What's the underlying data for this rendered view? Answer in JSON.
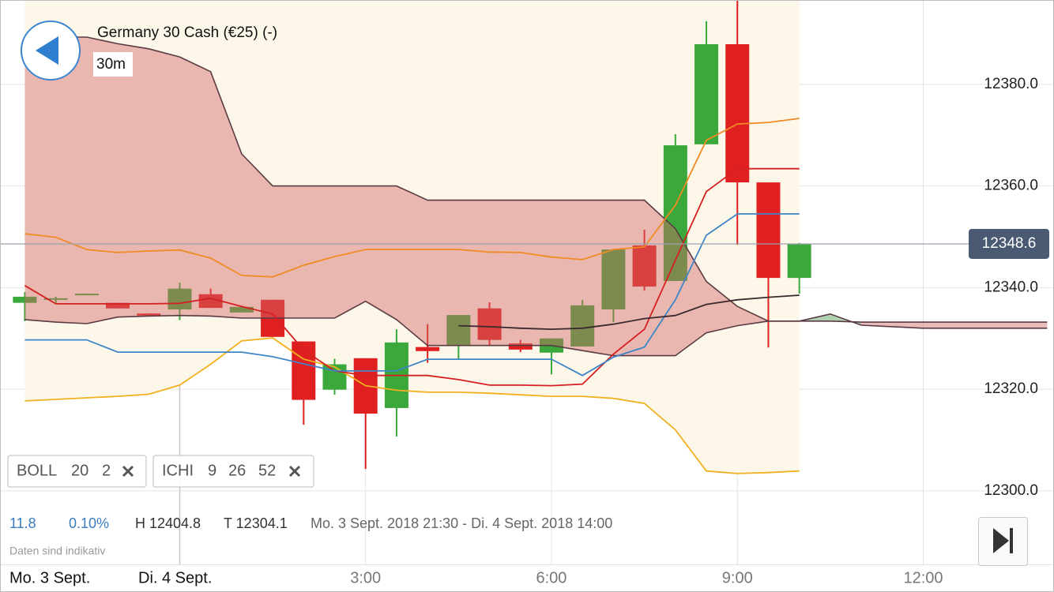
{
  "header": {
    "title": "Germany 30 Cash (€25) (-)",
    "timeframe": "30m"
  },
  "indicators": [
    {
      "name": "BOLL",
      "params": [
        20,
        2
      ]
    },
    {
      "name": "ICHI",
      "params": [
        9,
        26,
        52
      ]
    }
  ],
  "stats": {
    "change": 11.8,
    "change_pct": "0.10%",
    "high": "H 12404.8",
    "low": "T 12304.1",
    "range": "Mo. 3 Sept. 2018 21:30 - Di. 4 Sept. 2018 14:00"
  },
  "footer_note": "Daten sind indikativ",
  "dates": [
    "Mo. 3 Sept.",
    "Di. 4 Sept."
  ],
  "chart_data": {
    "type": "candlestick",
    "x": [
      -2.5,
      -2,
      -1.5,
      -1,
      -0.5,
      0,
      0.5,
      1,
      1.5,
      2,
      2.5,
      3,
      3.5,
      4,
      4.5,
      5,
      5.5,
      6,
      6.5,
      7,
      7.5,
      8,
      8.5,
      9,
      9.5,
      10,
      10.5,
      11,
      11.5,
      12,
      12.5,
      13,
      13.5,
      14
    ],
    "open": [
      12337.0,
      12337.8,
      12338.8,
      12337.0,
      12334.9,
      12335.7,
      12338.7,
      12335.1,
      12337.6,
      12329.4,
      12319.9,
      12326.1,
      12316.3,
      12328.3,
      12328.7,
      12335.9,
      12329.0,
      12327.2,
      12328.4,
      12335.7,
      12348.3,
      12341.3,
      12368.2,
      12387.9,
      12360.7,
      12341.9,
      null,
      null,
      null,
      null,
      null,
      null,
      null,
      null
    ],
    "high": [
      12339.1,
      12338.2,
      12338.8,
      12337.0,
      12334.9,
      12341.0,
      12339.8,
      12336.2,
      12337.6,
      12329.4,
      12326.0,
      12326.1,
      12331.8,
      12332.8,
      12334.6,
      12337.1,
      12329.7,
      12330.0,
      12337.6,
      12347.5,
      12351.4,
      12370.2,
      12392.4,
      12396.6,
      12360.7,
      12348.8,
      null,
      null,
      null,
      null,
      null,
      null,
      null,
      null
    ],
    "low": [
      12333.4,
      12336.9,
      12338.8,
      12335.9,
      12334.5,
      12333.6,
      12336.0,
      12335.1,
      12330.3,
      12313.0,
      12318.9,
      12304.3,
      12310.7,
      12325.2,
      12326.0,
      12328.7,
      12327.3,
      12322.9,
      12328.4,
      12333.2,
      12339.4,
      12341.3,
      12368.2,
      12348.4,
      12328.2,
      12338.8,
      null,
      null,
      null,
      null,
      null,
      null,
      null,
      null
    ],
    "close": [
      12338.2,
      12337.9,
      12338.8,
      12335.9,
      12334.5,
      12339.8,
      12336.0,
      12336.2,
      12330.3,
      12317.9,
      12324.9,
      12315.2,
      12329.2,
      12327.5,
      12334.6,
      12329.7,
      12327.8,
      12330.0,
      12336.5,
      12347.5,
      12340.2,
      12368.0,
      12387.9,
      12360.7,
      12341.9,
      12348.6,
      null,
      null,
      null,
      null,
      null,
      null,
      null,
      null
    ],
    "up_color": "#3aa83a",
    "down_color": "#e02020",
    "series": [
      {
        "color": "#f08a24",
        "values": [
          12350.6,
          12349.9,
          12347.5,
          12346.9,
          12347.2,
          12347.4,
          12345.8,
          12342.4,
          12342.1,
          12344.4,
          12346.1,
          12347.5,
          12347.5,
          12347.5,
          12347.5,
          12347.0,
          12346.9,
          12346.0,
          12345.5,
          12347.5,
          12348.0,
          12356.2,
          12369.0,
          12372.2,
          12372.5,
          12373.3,
          null,
          null,
          null,
          null,
          null,
          null,
          null,
          null
        ]
      },
      {
        "color": "#f0b020",
        "fill_above": "#fdf7ea",
        "values": [
          12317.7,
          12318.0,
          12318.3,
          12318.6,
          12319.0,
          12320.8,
          12324.9,
          12329.5,
          12330.1,
          12325.9,
          12324.4,
          12320.7,
          12319.8,
          12319.4,
          12319.4,
          12319.2,
          12318.9,
          12318.6,
          12318.6,
          12318.2,
          12317.2,
          12312.0,
          12303.9,
          12303.4,
          12303.6,
          12303.9,
          null,
          null,
          null,
          null,
          null,
          null,
          null,
          null
        ]
      },
      {
        "color": "#d42020",
        "values": [
          12340.4,
          12336.8,
          12336.8,
          12336.8,
          12336.8,
          12336.9,
          12337.9,
          12336.3,
          12334.8,
          12327.7,
          12323.6,
          12322.7,
          12322.7,
          12322.7,
          12321.9,
          12320.8,
          12320.8,
          12320.7,
          12321.0,
          12326.9,
          12331.8,
          12345.4,
          12358.9,
          12363.4,
          12363.4,
          12363.4,
          null,
          null,
          null,
          null,
          null,
          null,
          null,
          null
        ]
      },
      {
        "color": "#3d85c6",
        "values": [
          12329.7,
          12329.7,
          12329.7,
          12327.3,
          12327.3,
          12327.3,
          12327.3,
          12327.3,
          12326.4,
          12325.0,
          12323.6,
          12323.6,
          12323.6,
          12325.9,
          12325.9,
          12325.9,
          12325.9,
          12325.9,
          12322.7,
          12326.3,
          12328.3,
          12337.6,
          12350.3,
          12354.5,
          12354.5,
          12354.5,
          null,
          null,
          null,
          null,
          null,
          null,
          null,
          null
        ]
      },
      {
        "color": "#3a2a2e",
        "values": [
          null,
          null,
          null,
          null,
          null,
          null,
          null,
          null,
          null,
          null,
          null,
          null,
          null,
          null,
          12332.5,
          12332.3,
          12332.0,
          12331.8,
          12332.0,
          12332.8,
          12333.9,
          12334.5,
          12336.7,
          12337.6,
          12338.1,
          12338.5,
          null,
          null,
          null,
          null,
          null,
          null,
          null,
          null
        ]
      }
    ],
    "cloud": {
      "line_color": "#5a3a42",
      "up_color": "#4e9a4e",
      "down_color": "#d06868",
      "span_a": [
        12333.7,
        12333.2,
        12332.9,
        12334.2,
        12334.4,
        12334.5,
        12334.4,
        12334.0,
        12334.0,
        12334.0,
        12334.0,
        12337.3,
        12333.7,
        12328.6,
        12328.6,
        12328.6,
        12328.6,
        12328.6,
        12327.6,
        12326.6,
        12326.6,
        12326.6,
        12331.1,
        12332.5,
        12333.4,
        12333.4,
        12334.8,
        12332.6,
        12332.3,
        12332.0,
        12332.0,
        12332.0,
        12332.0,
        12332.0
      ],
      "span_b": [
        12389.3,
        12389.3,
        12389.3,
        12388.0,
        12387.0,
        12385.4,
        12382.5,
        12366.3,
        12360.0,
        12360.0,
        12360.0,
        12360.0,
        12360.0,
        12357.2,
        12357.2,
        12357.2,
        12357.2,
        12357.2,
        12357.2,
        12357.2,
        12357.2,
        12351.6,
        12341.2,
        12336.3,
        12333.4,
        12333.4,
        12333.4,
        12333.2,
        12333.2,
        12333.2,
        12333.2,
        12333.2,
        12333.2,
        12333.2
      ]
    },
    "last_price": 12348.6,
    "xlim": [
      -2.9,
      14.11
    ],
    "ylim": [
      12296.4,
      12396.6
    ],
    "xticks": [
      {
        "value": 3,
        "label": "3:00"
      },
      {
        "value": 6,
        "label": "6:00"
      },
      {
        "value": 9,
        "label": "9:00"
      },
      {
        "value": 12,
        "label": "12:00"
      }
    ],
    "yticks": [
      {
        "value": 12300,
        "label": "12300.0"
      },
      {
        "value": 12320,
        "label": "12320.0"
      },
      {
        "value": 12340,
        "label": "12340.0"
      },
      {
        "value": 12360,
        "label": "12360.0"
      },
      {
        "value": 12380,
        "label": "12380.0"
      }
    ],
    "grid": true
  }
}
